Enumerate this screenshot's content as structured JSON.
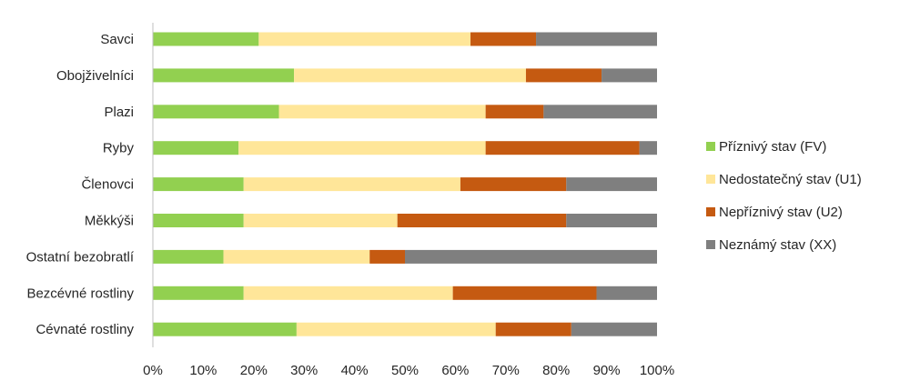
{
  "chart_data": {
    "type": "bar",
    "orientation": "horizontal",
    "stacked": "percent",
    "categories": [
      "Savci",
      "Obojživelníci",
      "Plazi",
      "Ryby",
      "Členovci",
      "Měkkýši",
      "Ostatní bezobratlí",
      "Bezcévné rostliny",
      "Cévnaté rostliny"
    ],
    "series": [
      {
        "name": "Příznivý stav (FV)",
        "color": "#92d050",
        "values": [
          21,
          28,
          25,
          17,
          18,
          18,
          14,
          18,
          28.5
        ]
      },
      {
        "name": "Nedostatečný stav (U1)",
        "color": "#ffe699",
        "values": [
          42,
          46,
          41,
          49,
          43,
          30.5,
          29,
          41.5,
          39.5
        ]
      },
      {
        "name": "Nepříznivý stav (U2)",
        "color": "#c55a11",
        "values": [
          13,
          15,
          11.5,
          30.5,
          21,
          33.5,
          7,
          28.5,
          15
        ]
      },
      {
        "name": "Neznámý stav (XX)",
        "color": "#7f7f7f",
        "values": [
          24,
          11,
          22.5,
          3.5,
          18,
          18,
          50,
          12,
          17
        ]
      }
    ],
    "x_ticks": [
      "0%",
      "10%",
      "20%",
      "30%",
      "40%",
      "50%",
      "60%",
      "70%",
      "80%",
      "90%",
      "100%"
    ],
    "xlim": [
      0,
      100
    ],
    "grid": false,
    "legend_position": "right"
  }
}
